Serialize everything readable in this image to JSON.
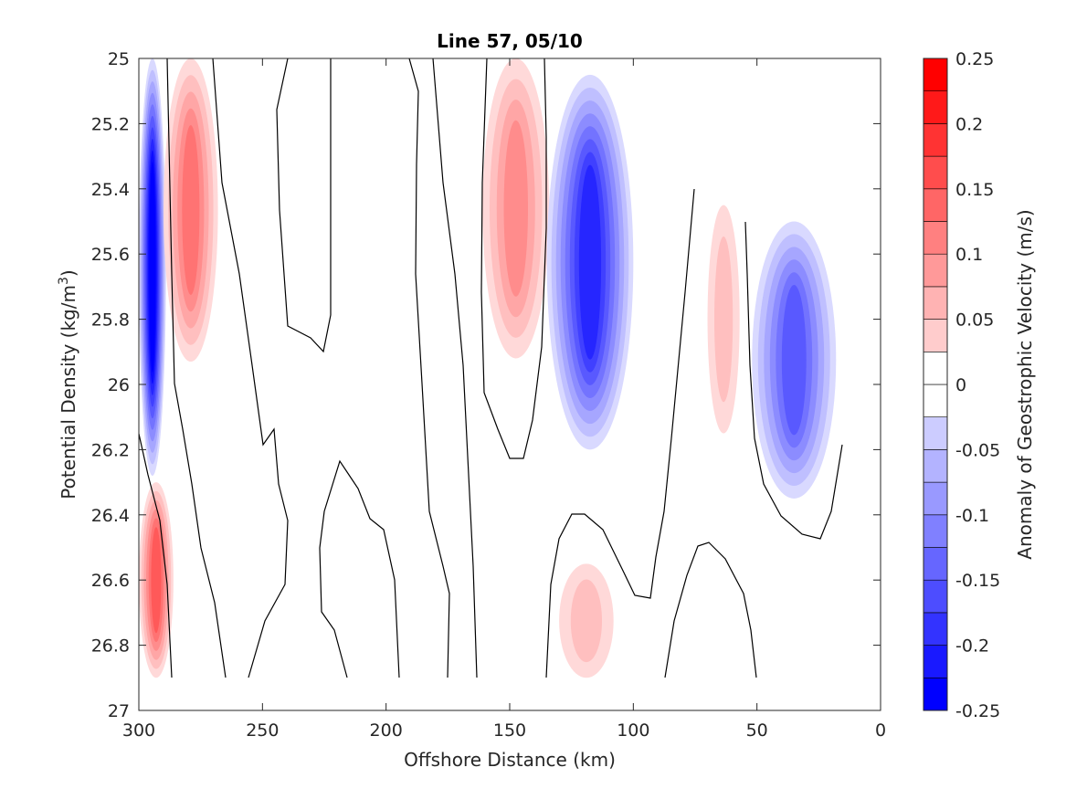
{
  "chart_data": {
    "type": "contour",
    "title": "Line 57, 05/10",
    "xlabel": "Offshore Distance (km)",
    "ylabel_main": "Potential Density (kg/m",
    "ylabel_sup": "3",
    "ylabel_close": ")",
    "xlim": [
      300,
      0
    ],
    "ylim": [
      25,
      27
    ],
    "xticks": [
      300,
      250,
      200,
      150,
      100,
      50,
      0
    ],
    "yticks": [
      25,
      25.2,
      25.4,
      25.6,
      25.8,
      26,
      26.2,
      26.4,
      26.6,
      26.8,
      27
    ],
    "x_tick_labels": [
      "300",
      "250",
      "200",
      "150",
      "100",
      "50",
      "0"
    ],
    "y_tick_labels": [
      "25",
      "25.2",
      "25.4",
      "25.6",
      "25.8",
      "26",
      "26.2",
      "26.4",
      "26.6",
      "26.8",
      "27"
    ],
    "colorbar": {
      "label": "Anomaly of Geostrophic Velocity (m/s)",
      "range": [
        -0.25,
        0.25
      ],
      "levels": [
        -0.25,
        -0.225,
        -0.2,
        -0.175,
        -0.15,
        -0.125,
        -0.1,
        -0.075,
        -0.05,
        -0.025,
        0,
        0.025,
        0.05,
        0.075,
        0.1,
        0.125,
        0.15,
        0.175,
        0.2,
        0.225,
        0.25
      ],
      "tick_values": [
        0.25,
        0.2,
        0.15,
        0.1,
        0.05,
        0,
        -0.05,
        -0.1,
        -0.15,
        -0.2,
        -0.25
      ],
      "tick_labels": [
        "0.25",
        "0.2",
        "0.15",
        "0.1",
        "0.05",
        "0",
        "-0.05",
        "-0.1",
        "-0.15",
        "-0.2",
        "-0.25"
      ]
    },
    "features": [
      {
        "name": "blue-core-300km",
        "type": "negative",
        "x": [
          300,
          289
        ],
        "y": [
          25,
          26.28
        ],
        "min": -0.25
      },
      {
        "name": "red-core-280km",
        "type": "positive",
        "x": [
          290,
          268
        ],
        "y": [
          25,
          25.93
        ],
        "max": 0.13
      },
      {
        "name": "red-core-147km",
        "type": "positive",
        "x": [
          161,
          134
        ],
        "y": [
          25,
          25.92
        ],
        "max": 0.1
      },
      {
        "name": "blue-core-120km",
        "type": "negative",
        "x": [
          135,
          100
        ],
        "y": [
          25.05,
          26.2
        ],
        "min": -0.2
      },
      {
        "name": "red-core-65km",
        "type": "positive",
        "x": [
          70,
          57
        ],
        "y": [
          25.45,
          26.15
        ],
        "max": 0.04
      },
      {
        "name": "blue-core-40km",
        "type": "negative",
        "x": [
          52,
          18
        ],
        "y": [
          25.5,
          26.35
        ],
        "min": -0.15
      },
      {
        "name": "red-deep-300km",
        "type": "positive",
        "x": [
          300,
          286
        ],
        "y": [
          26.3,
          26.9
        ],
        "max": 0.15
      },
      {
        "name": "red-deep-125km",
        "type": "positive",
        "x": [
          130,
          108
        ],
        "y": [
          26.55,
          26.9
        ],
        "max": 0.06
      }
    ]
  }
}
